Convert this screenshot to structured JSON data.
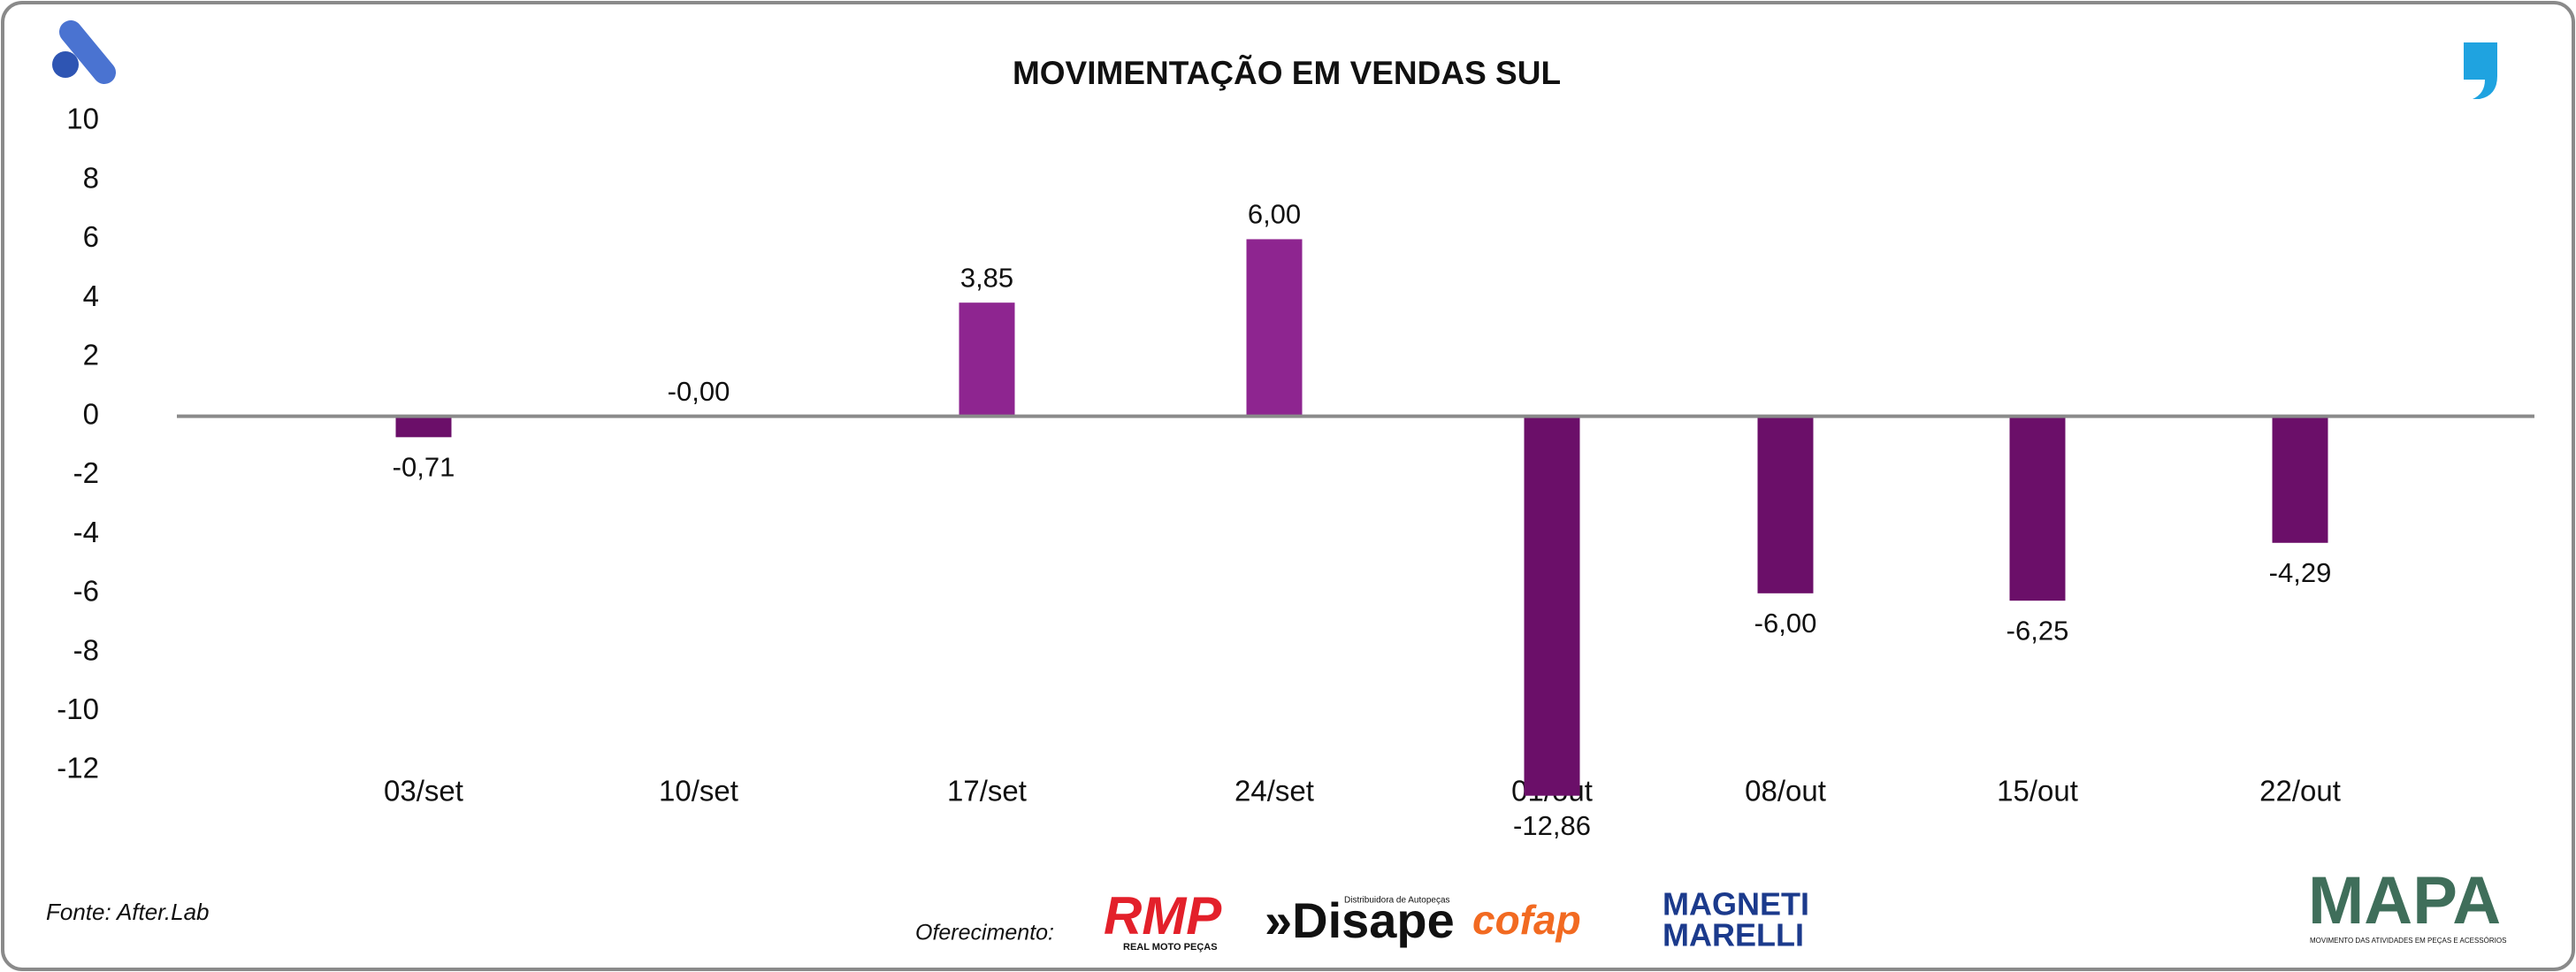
{
  "chart_data": {
    "type": "bar",
    "title": "MOVIMENTAÇÃO EM VENDAS SUL",
    "categories": [
      "03/set",
      "10/set",
      "17/set",
      "24/set",
      "01/out",
      "08/out",
      "15/out",
      "22/out"
    ],
    "values": [
      -0.71,
      0,
      3.85,
      6.0,
      -12.86,
      -6.0,
      -6.25,
      -4.29
    ],
    "value_labels": [
      "-0,71",
      "-0,00",
      "3,85",
      "6,00",
      "-12,86",
      "-6,00",
      "-6,25",
      "-4,29"
    ],
    "color": "#8e2590",
    "negative_color": "#6b0f69",
    "ylim": [
      -12,
      10
    ],
    "yticks": [
      -12,
      -10,
      -8,
      -6,
      -4,
      -2,
      0,
      2,
      4,
      6,
      8,
      10
    ],
    "grid": false
  },
  "footer": {
    "source": "Fonte: After.Lab",
    "offer": "Oferecimento:",
    "sponsors": [
      "RMP",
      "REAL MOTO PEÇAS",
      "»Disape",
      "Distribuidora de Autopeças",
      "cofap",
      "MAGNETI",
      "MARELLI"
    ],
    "brand": "MAPA",
    "brand_tagline": "MOVIMENTO DAS ATIVIDADES EM PEÇAS E ACESSÓRIOS"
  }
}
